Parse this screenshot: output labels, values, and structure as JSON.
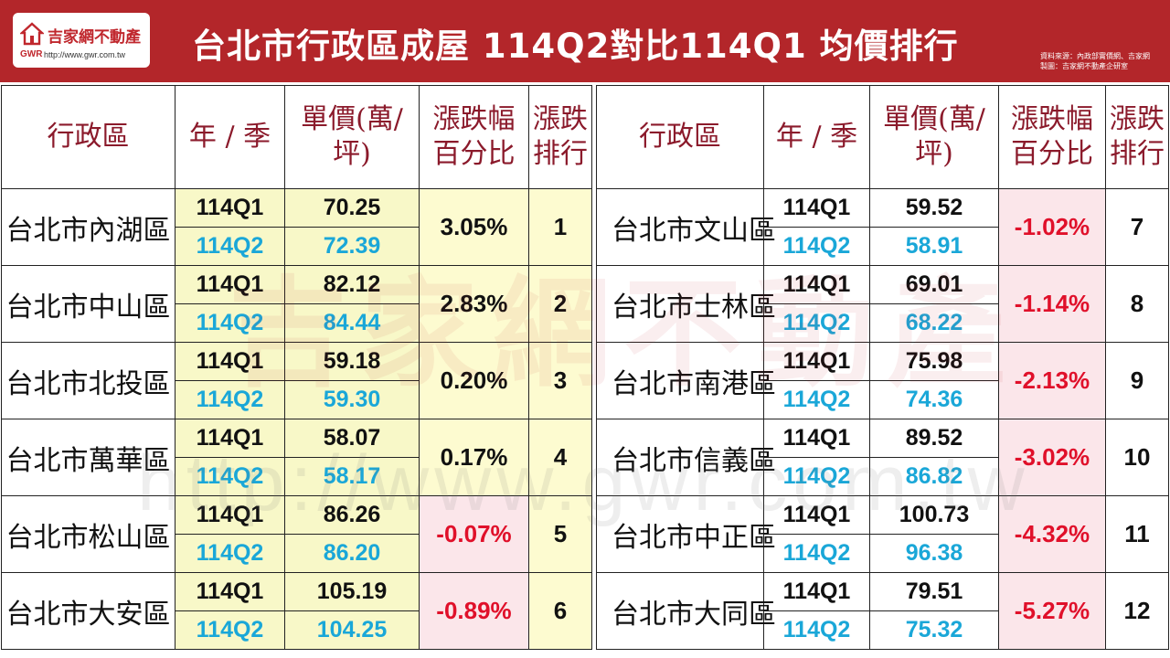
{
  "header": {
    "logo_name": "吉家網不動產",
    "logo_abbr": "GWR",
    "logo_url": "http://www.gwr.com.tw",
    "title": "台北市行政區成屋 114Q2對比114Q1 均價排行",
    "source_line1": "資料來源：內政部實價網、吉家網",
    "source_line2": "製圖：吉家網不動產企研室"
  },
  "watermark": {
    "text": "吉家網不動產",
    "url": "http://www.gwr.com.tw"
  },
  "columns": {
    "district": "行政區",
    "period": "年 / 季",
    "price": "單價(萬/坪)",
    "change_line1": "漲跌幅",
    "change_line2": "百分比",
    "rank_line1": "漲跌",
    "rank_line2": "排行"
  },
  "left_rows": [
    {
      "district": "台北市內湖區",
      "q1_label": "114Q1",
      "q1_price": "70.25",
      "q2_label": "114Q2",
      "q2_price": "72.39",
      "change": "3.05%",
      "rank": "1"
    },
    {
      "district": "台北市中山區",
      "q1_label": "114Q1",
      "q1_price": "82.12",
      "q2_label": "114Q2",
      "q2_price": "84.44",
      "change": "2.83%",
      "rank": "2"
    },
    {
      "district": "台北市北投區",
      "q1_label": "114Q1",
      "q1_price": "59.18",
      "q2_label": "114Q2",
      "q2_price": "59.30",
      "change": "0.20%",
      "rank": "3"
    },
    {
      "district": "台北市萬華區",
      "q1_label": "114Q1",
      "q1_price": "58.07",
      "q2_label": "114Q2",
      "q2_price": "58.17",
      "change": "0.17%",
      "rank": "4"
    },
    {
      "district": "台北市松山區",
      "q1_label": "114Q1",
      "q1_price": "86.26",
      "q2_label": "114Q2",
      "q2_price": "86.20",
      "change": "-0.07%",
      "rank": "5"
    },
    {
      "district": "台北市大安區",
      "q1_label": "114Q1",
      "q1_price": "105.19",
      "q2_label": "114Q2",
      "q2_price": "104.25",
      "change": "-0.89%",
      "rank": "6"
    }
  ],
  "right_rows": [
    {
      "district": "台北市文山區",
      "q1_label": "114Q1",
      "q1_price": "59.52",
      "q2_label": "114Q2",
      "q2_price": "58.91",
      "change": "-1.02%",
      "rank": "7"
    },
    {
      "district": "台北市士林區",
      "q1_label": "114Q1",
      "q1_price": "69.01",
      "q2_label": "114Q2",
      "q2_price": "68.22",
      "change": "-1.14%",
      "rank": "8"
    },
    {
      "district": "台北市南港區",
      "q1_label": "114Q1",
      "q1_price": "75.98",
      "q2_label": "114Q2",
      "q2_price": "74.36",
      "change": "-2.13%",
      "rank": "9"
    },
    {
      "district": "台北市信義區",
      "q1_label": "114Q1",
      "q1_price": "89.52",
      "q2_label": "114Q2",
      "q2_price": "86.82",
      "change": "-3.02%",
      "rank": "10"
    },
    {
      "district": "台北市中正區",
      "q1_label": "114Q1",
      "q1_price": "100.73",
      "q2_label": "114Q2",
      "q2_price": "96.38",
      "change": "-4.32%",
      "rank": "11"
    },
    {
      "district": "台北市大同區",
      "q1_label": "114Q1",
      "q1_price": "79.51",
      "q2_label": "114Q2",
      "q2_price": "75.32",
      "change": "-5.27%",
      "rank": "12"
    }
  ],
  "colors": {
    "header_red": "#b3262a",
    "q2_blue": "#1aa7d8",
    "negative_red": "#e0102a",
    "header_text": "#8b1a2b"
  }
}
